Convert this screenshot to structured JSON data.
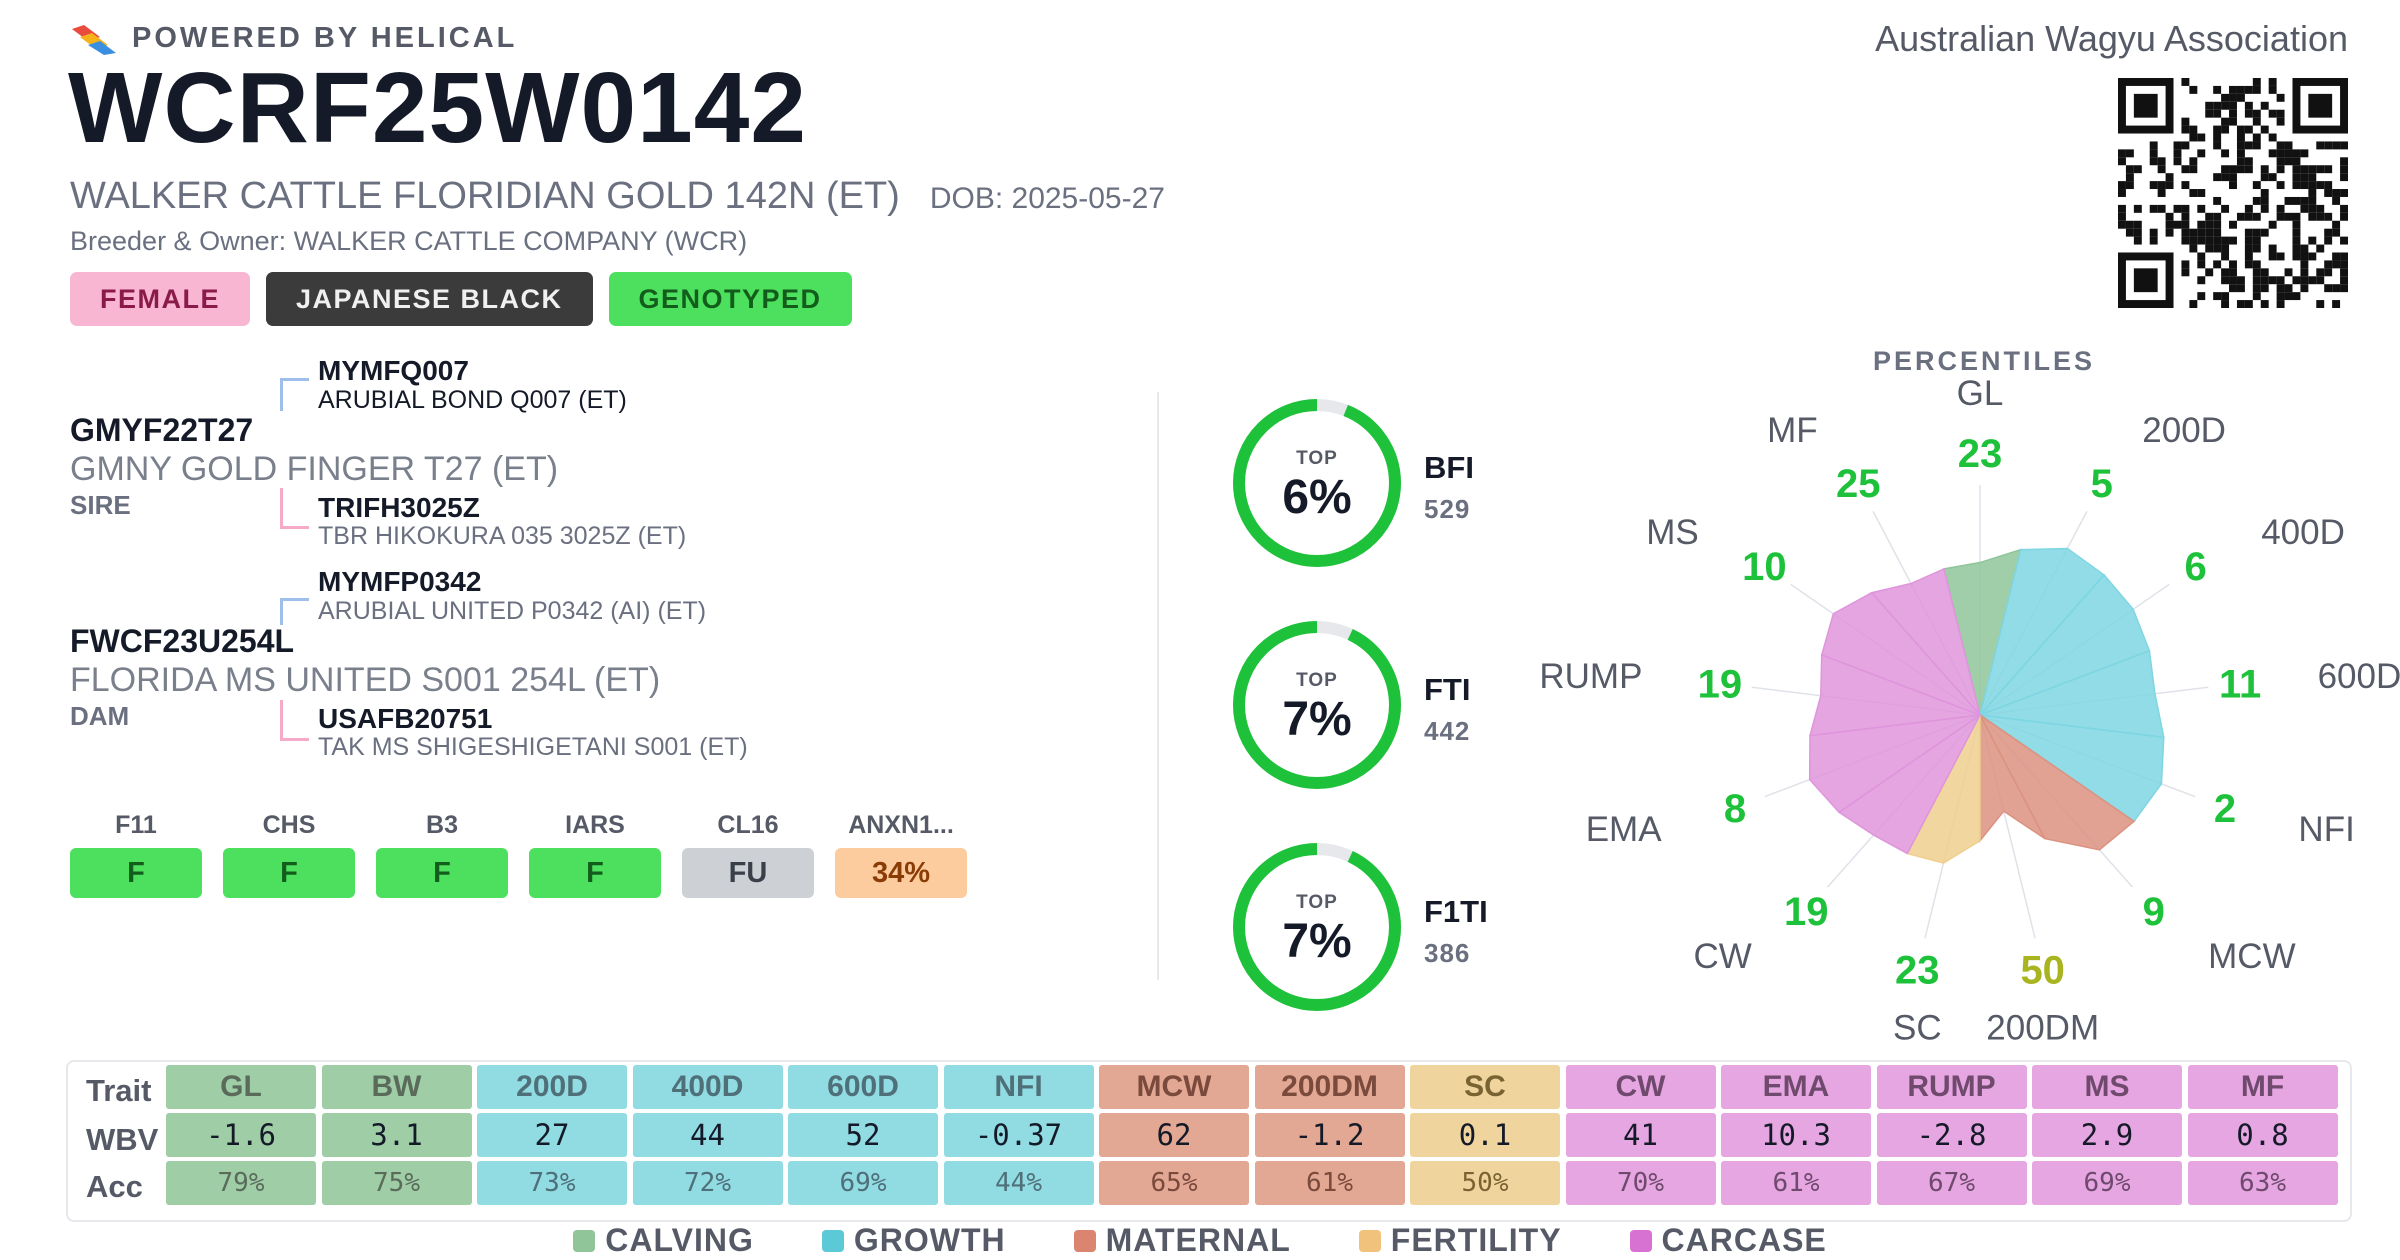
{
  "header": {
    "brand": "POWERED BY HELICAL",
    "association": "Australian Wagyu Association",
    "registration": "WCRF25W0142",
    "animal_name": "WALKER CATTLE FLORIDIAN GOLD 142N (ET)",
    "dob": "DOB: 2025-05-27",
    "breeder": "Breeder & Owner: WALKER CATTLE COMPANY (WCR)"
  },
  "tags": [
    {
      "label": "FEMALE",
      "style": "female"
    },
    {
      "label": "JAPANESE BLACK",
      "style": "breed"
    },
    {
      "label": "GENOTYPED",
      "style": "geno"
    }
  ],
  "pedigree": {
    "sire": {
      "id": "GMYF22T27",
      "name": "GMNY GOLD FINGER T27 (ET)",
      "role": "SIRE",
      "sire": {
        "id": "MYMFQ007",
        "name": "ARUBIAL BOND Q007 (ET)"
      },
      "dam": {
        "id": "TRIFH3025Z",
        "name": "TBR HIKOKURA 035 3025Z (ET)"
      }
    },
    "dam": {
      "id": "FWCF23U254L",
      "name": "FLORIDA MS UNITED S001 254L (ET)",
      "role": "DAM",
      "sire": {
        "id": "MYMFP0342",
        "name": "ARUBIAL UNITED P0342 (AI) (ET)"
      },
      "dam": {
        "id": "USAFB20751",
        "name": "TAK MS SHIGESHIGETANI S001 (ET)"
      }
    }
  },
  "genetic_tests": [
    {
      "label": "F11",
      "value": "F",
      "status": "green"
    },
    {
      "label": "CHS",
      "value": "F",
      "status": "green"
    },
    {
      "label": "B3",
      "value": "F",
      "status": "green"
    },
    {
      "label": "IARS",
      "value": "F",
      "status": "green"
    },
    {
      "label": "CL16",
      "value": "FU",
      "status": "gray"
    },
    {
      "label": "ANXN1...",
      "value": "34%",
      "status": "orange"
    }
  ],
  "indexes": [
    {
      "name": "BFI",
      "value": "529",
      "top_label": "TOP",
      "top": "6%",
      "percentile": 6
    },
    {
      "name": "FTI",
      "value": "442",
      "top_label": "TOP",
      "top": "7%",
      "percentile": 7
    },
    {
      "name": "F1TI",
      "value": "386",
      "top_label": "TOP",
      "top": "7%",
      "percentile": 7
    }
  ],
  "percentiles_title": "PERCENTILES",
  "chart_data": {
    "type": "radar",
    "title": "PERCENTILES",
    "categories": [
      "GL",
      "200D",
      "400D",
      "600D",
      "NFI",
      "MCW",
      "200DM",
      "SC",
      "CW",
      "EMA",
      "RUMP",
      "MS",
      "MF"
    ],
    "values": [
      23,
      5,
      6,
      11,
      2,
      9,
      50,
      23,
      19,
      8,
      19,
      10,
      25
    ],
    "groups": [
      "CALVING",
      "GROWTH",
      "GROWTH",
      "GROWTH",
      "GROWTH",
      "MATERNAL",
      "MATERNAL",
      "FERTILITY",
      "CARCASE",
      "CARCASE",
      "CARCASE",
      "CARCASE",
      "CARCASE"
    ],
    "note_colors": {
      "good": "#1dc23a",
      "mid": "#a8b520"
    },
    "rlim": [
      0,
      100
    ]
  },
  "traits": {
    "row_labels": {
      "trait": "Trait",
      "wbv": "WBV",
      "acc": "Acc"
    },
    "items": [
      {
        "name": "GL",
        "wbv": "-1.6",
        "acc": "79%",
        "group": "CALVING"
      },
      {
        "name": "BW",
        "wbv": "3.1",
        "acc": "75%",
        "group": "CALVING"
      },
      {
        "name": "200D",
        "wbv": "27",
        "acc": "73%",
        "group": "GROWTH"
      },
      {
        "name": "400D",
        "wbv": "44",
        "acc": "72%",
        "group": "GROWTH"
      },
      {
        "name": "600D",
        "wbv": "52",
        "acc": "69%",
        "group": "GROWTH"
      },
      {
        "name": "NFI",
        "wbv": "-0.37",
        "acc": "44%",
        "group": "GROWTH"
      },
      {
        "name": "MCW",
        "wbv": "62",
        "acc": "65%",
        "group": "MATERNAL"
      },
      {
        "name": "200DM",
        "wbv": "-1.2",
        "acc": "61%",
        "group": "MATERNAL"
      },
      {
        "name": "SC",
        "wbv": "0.1",
        "acc": "50%",
        "group": "FERTILITY"
      },
      {
        "name": "CW",
        "wbv": "41",
        "acc": "70%",
        "group": "CARCASE"
      },
      {
        "name": "EMA",
        "wbv": "10.3",
        "acc": "61%",
        "group": "CARCASE"
      },
      {
        "name": "RUMP",
        "wbv": "-2.8",
        "acc": "67%",
        "group": "CARCASE"
      },
      {
        "name": "MS",
        "wbv": "2.9",
        "acc": "69%",
        "group": "CARCASE"
      },
      {
        "name": "MF",
        "wbv": "0.8",
        "acc": "63%",
        "group": "CARCASE"
      }
    ]
  },
  "legend": [
    {
      "label": "CALVING",
      "group": "CALVING"
    },
    {
      "label": "GROWTH",
      "group": "GROWTH"
    },
    {
      "label": "MATERNAL",
      "group": "MATERNAL"
    },
    {
      "label": "FERTILITY",
      "group": "FERTILITY"
    },
    {
      "label": "CARCASE",
      "group": "CARCASE"
    }
  ],
  "group_colors": {
    "CALVING": {
      "head": "#9fcda6",
      "cell": "#9fcda6",
      "legend": "#8fc598",
      "radar": "#8fc59a",
      "text": "#5a6b5c"
    },
    "GROWTH": {
      "head": "#91dbe3",
      "cell": "#91dbe3",
      "legend": "#5ccad6",
      "radar": "#7ed6e2",
      "text": "#4f7078"
    },
    "MATERNAL": {
      "head": "#e3a893",
      "cell": "#e3a893",
      "legend": "#db8470",
      "radar": "#dc9280",
      "text": "#7a4a3c"
    },
    "FERTILITY": {
      "head": "#f0d49d",
      "cell": "#f0d49d",
      "legend": "#f0c27c",
      "radar": "#f0cf8e",
      "text": "#7a6332"
    },
    "CARCASE": {
      "head": "#e6a6e2",
      "cell": "#e6a6e2",
      "legend": "#d872d2",
      "radar": "#df95dc",
      "text": "#6f4a6d"
    }
  }
}
